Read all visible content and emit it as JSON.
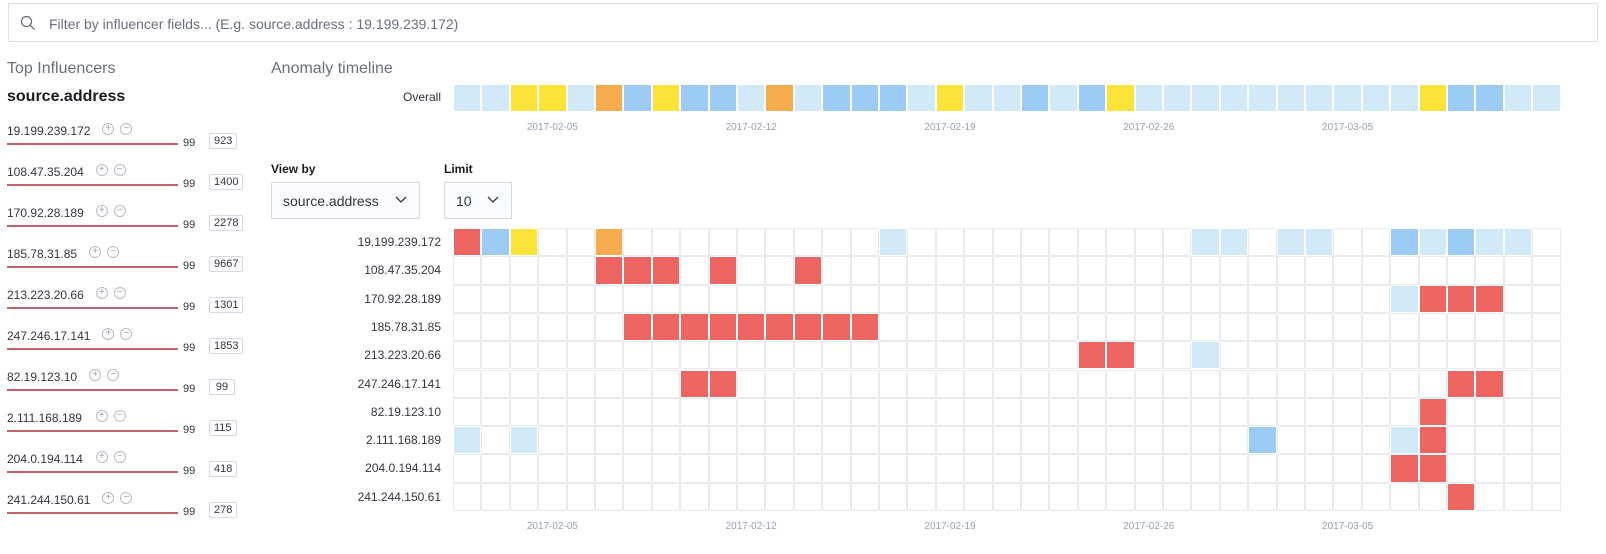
{
  "search": {
    "placeholder": "Filter by influencer fields... (E.g. source.address : 19.199.239.172)"
  },
  "influencers": {
    "title": "Top Influencers",
    "field": "source.address",
    "items": [
      {
        "value": "19.199.239.172",
        "score": "99",
        "count": "923"
      },
      {
        "value": "108.47.35.204",
        "score": "99",
        "count": "1400"
      },
      {
        "value": "170.92.28.189",
        "score": "99",
        "count": "2278"
      },
      {
        "value": "185.78.31.85",
        "score": "99",
        "count": "9667"
      },
      {
        "value": "213.223.20.66",
        "score": "99",
        "count": "1301"
      },
      {
        "value": "247.246.17.141",
        "score": "99",
        "count": "1853"
      },
      {
        "value": "82.19.123.10",
        "score": "99",
        "count": "99"
      },
      {
        "value": "2.111.168.189",
        "score": "99",
        "count": "115"
      },
      {
        "value": "204.0.194.114",
        "score": "99",
        "count": "418"
      },
      {
        "value": "241.244.150.61",
        "score": "99",
        "count": "278"
      }
    ]
  },
  "timeline": {
    "title": "Anomaly timeline",
    "overall_label": "Overall",
    "view_by_label": "View by",
    "view_by_value": "source.address",
    "limit_label": "Limit",
    "limit_value": "10",
    "dates": [
      "2017-02-05",
      "2017-02-12",
      "2017-02-19",
      "2017-02-26",
      "2017-03-05"
    ],
    "date_columns": [
      3,
      10,
      17,
      24,
      31
    ],
    "num_columns": 39,
    "colors": {
      "0": "#ffffff",
      "1": "#d2e9f7",
      "2": "#9cccf4",
      "3": "#fbe339",
      "4": "#f6ab4e",
      "5": "#ee6461"
    },
    "overall": [
      1,
      1,
      3,
      3,
      1,
      4,
      2,
      3,
      2,
      2,
      1,
      4,
      1,
      2,
      2,
      2,
      1,
      3,
      1,
      1,
      2,
      1,
      2,
      3,
      1,
      1,
      1,
      1,
      1,
      1,
      1,
      1,
      1,
      1,
      3,
      2,
      2,
      1,
      1
    ],
    "swimlanes": [
      {
        "label": "19.199.239.172",
        "cells": {
          "0": 5,
          "1": 2,
          "2": 3,
          "5": 4,
          "15": 1,
          "26": 1,
          "27": 1,
          "29": 1,
          "30": 1,
          "33": 2,
          "34": 1,
          "35": 2,
          "36": 1,
          "37": 1
        }
      },
      {
        "label": "108.47.35.204",
        "cells": {
          "5": 5,
          "6": 5,
          "7": 5,
          "9": 5,
          "12": 5
        }
      },
      {
        "label": "170.92.28.189",
        "cells": {
          "33": 1,
          "34": 5,
          "35": 5,
          "36": 5
        }
      },
      {
        "label": "185.78.31.85",
        "cells": {
          "6": 5,
          "7": 5,
          "8": 5,
          "9": 5,
          "10": 5,
          "11": 5,
          "12": 5,
          "13": 5,
          "14": 5
        }
      },
      {
        "label": "213.223.20.66",
        "cells": {
          "22": 5,
          "23": 5,
          "26": 1
        }
      },
      {
        "label": "247.246.17.141",
        "cells": {
          "8": 5,
          "9": 5,
          "35": 5,
          "36": 5
        }
      },
      {
        "label": "82.19.123.10",
        "cells": {
          "34": 5
        }
      },
      {
        "label": "2.111.168.189",
        "cells": {
          "0": 1,
          "2": 1,
          "28": 2,
          "33": 1,
          "34": 5
        }
      },
      {
        "label": "204.0.194.114",
        "cells": {
          "33": 5,
          "34": 5
        }
      },
      {
        "label": "241.244.150.61",
        "cells": {
          "35": 5
        }
      }
    ]
  }
}
